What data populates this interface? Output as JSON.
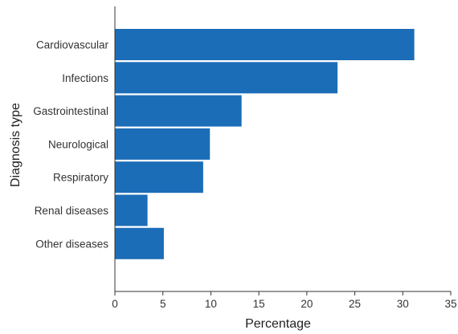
{
  "chart_data": {
    "type": "bar",
    "orientation": "horizontal",
    "categories": [
      "Cardiovascular",
      "Infections",
      "Gastrointestinal",
      "Neurological",
      "Respiratory",
      "Renal diseases",
      "Other diseases"
    ],
    "values": [
      31.2,
      23.2,
      13.2,
      9.9,
      9.2,
      3.4,
      5.1
    ],
    "xlabel": "Percentage",
    "ylabel": "Diagnosis type",
    "xlim": [
      0,
      35
    ],
    "xticks": [
      "0",
      "5",
      "10",
      "15",
      "20",
      "25",
      "30",
      "35"
    ],
    "grid": false,
    "bar_color": "#1c6db7"
  }
}
